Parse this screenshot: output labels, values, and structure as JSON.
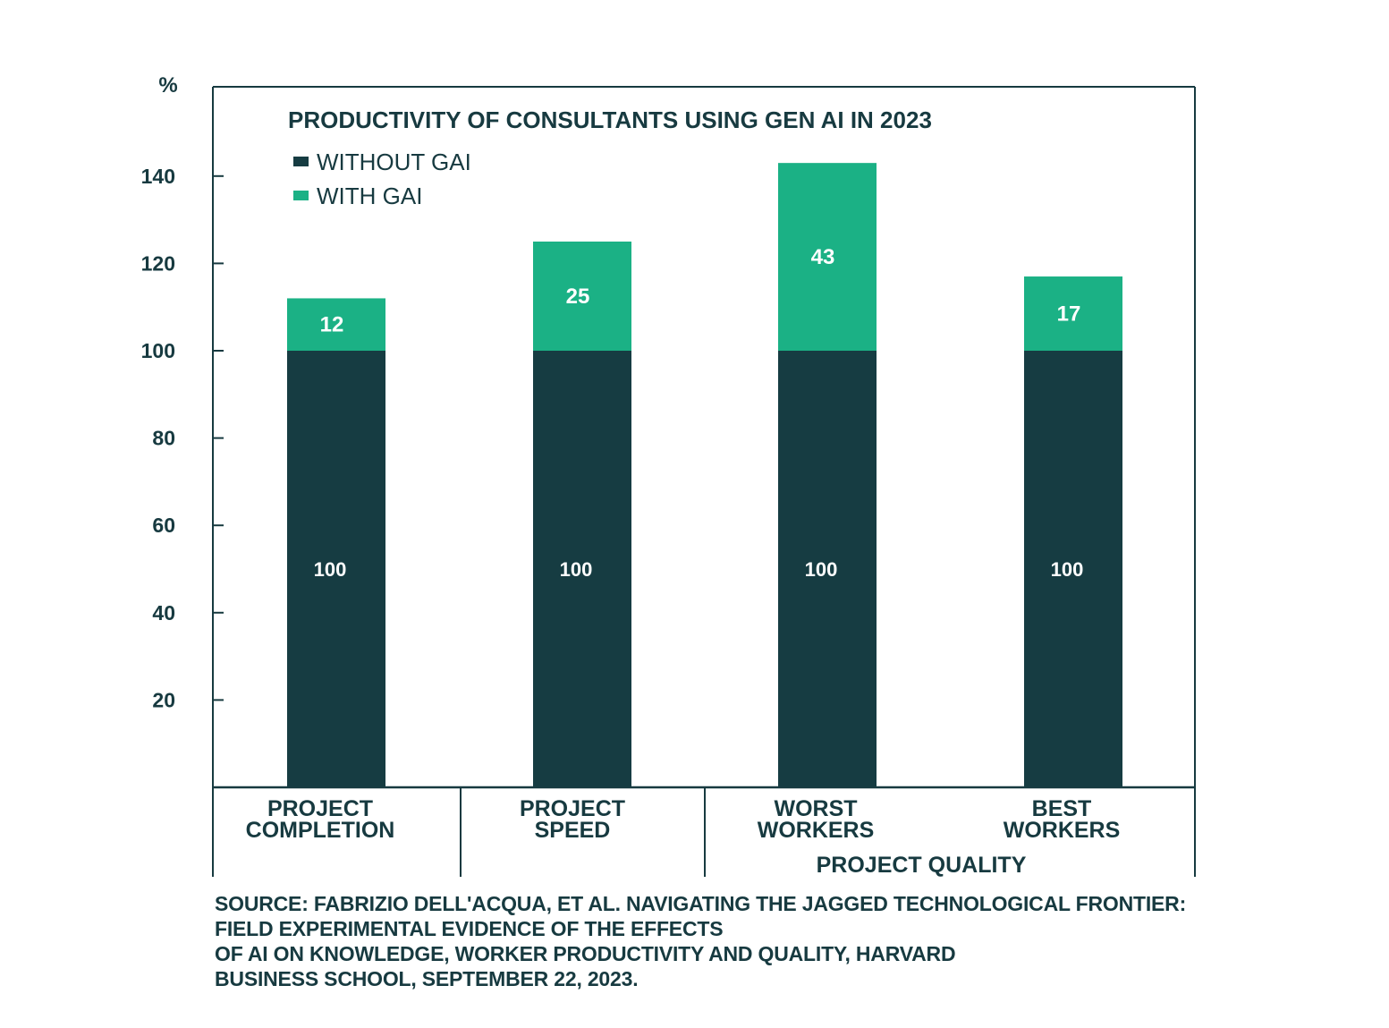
{
  "chart_data": {
    "type": "bar",
    "stacked": true,
    "title": "PRODUCTIVITY OF CONSULTANTS USING GEN AI IN 2023",
    "ylabel": "%",
    "ylim": [
      0,
      160
    ],
    "yticks": [
      20,
      40,
      60,
      80,
      100,
      120,
      140
    ],
    "categories": [
      {
        "line1": "PROJECT",
        "line2": "COMPLETION"
      },
      {
        "line1": "PROJECT",
        "line2": "SPEED"
      },
      {
        "line1": "WORST",
        "line2": "WORKERS"
      },
      {
        "line1": "BEST",
        "line2": "WORKERS"
      }
    ],
    "group_label": "PROJECT QUALITY",
    "series": [
      {
        "name": "WITHOUT GAI",
        "color": "#163c42",
        "values": [
          100,
          100,
          100,
          100
        ]
      },
      {
        "name": "WITH GAI",
        "color": "#1bb185",
        "values": [
          12,
          25,
          43,
          17
        ]
      }
    ]
  },
  "source": {
    "lines": [
      "SOURCE: FABRIZIO DELL'ACQUA, ET AL. NAVIGATING THE JAGGED TECHNOLOGICAL FRONTIER:",
      "FIELD EXPERIMENTAL EVIDENCE OF THE EFFECTS",
      "OF AI ON KNOWLEDGE, WORKER PRODUCTIVITY AND QUALITY, HARVARD",
      "BUSINESS SCHOOL, SEPTEMBER 22, 2023."
    ]
  }
}
